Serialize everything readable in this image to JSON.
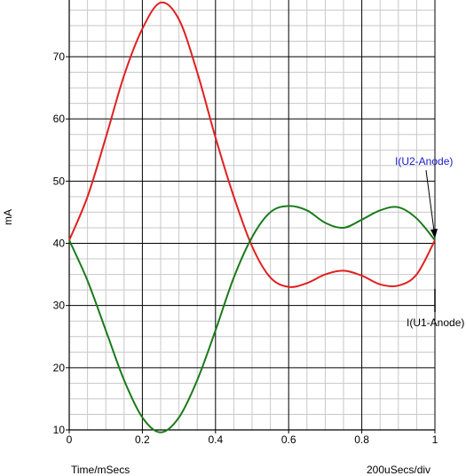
{
  "chart_data": {
    "type": "line",
    "title": "",
    "xlabel": "Time/mSecs",
    "ylabel": "mA",
    "scale_note": "200uSecs/div",
    "xlim": [
      0,
      1
    ],
    "ylim": [
      10,
      80
    ],
    "x_ticks": [
      0,
      0.2,
      0.4,
      0.6,
      0.8,
      1
    ],
    "x_tick_labels": [
      "0",
      "0.2",
      "0.4",
      "0.6",
      "0.8",
      "1"
    ],
    "y_ticks": [
      10,
      20,
      30,
      40,
      50,
      60,
      70
    ],
    "y_tick_labels": [
      "10",
      "20",
      "30",
      "40",
      "50",
      "60",
      "70"
    ],
    "grid": true,
    "series": [
      {
        "name": "I(U2-Anode)",
        "color": "#1a1acc",
        "line_color": "#e02020",
        "x": [
          0,
          0.05,
          0.1,
          0.15,
          0.2,
          0.25,
          0.3,
          0.35,
          0.4,
          0.45,
          0.5,
          0.55,
          0.6,
          0.65,
          0.7,
          0.75,
          0.8,
          0.85,
          0.9,
          0.95,
          1.0
        ],
        "y": [
          40.5,
          47.5,
          57,
          67,
          74.5,
          78.7,
          76,
          67.5,
          57,
          47.5,
          39.5,
          34.5,
          33,
          33.6,
          35,
          35.6,
          34.8,
          33.4,
          33.2,
          35,
          40.5
        ]
      },
      {
        "name": "I(U1-Anode)",
        "color": "#000000",
        "line_color": "#1a7a1a",
        "x": [
          0,
          0.05,
          0.1,
          0.15,
          0.2,
          0.25,
          0.3,
          0.35,
          0.4,
          0.45,
          0.5,
          0.55,
          0.6,
          0.65,
          0.7,
          0.75,
          0.8,
          0.85,
          0.9,
          0.95,
          1.0
        ],
        "y": [
          40.5,
          34,
          26,
          18,
          12,
          9.6,
          12,
          18,
          26,
          34.5,
          41,
          45,
          46,
          45.3,
          43.3,
          42.5,
          43.8,
          45.3,
          45.8,
          44,
          40.5
        ]
      }
    ]
  }
}
